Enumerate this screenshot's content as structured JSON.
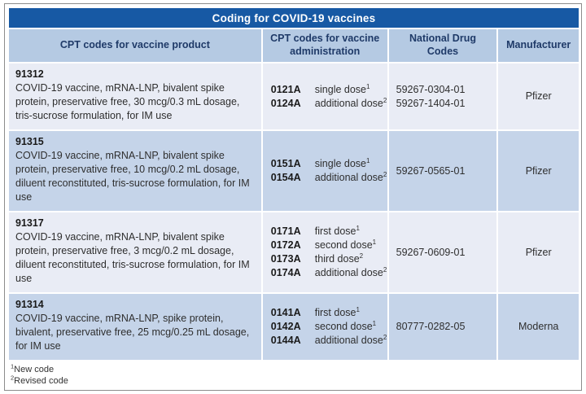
{
  "title": "Coding for COVID-19 vaccines",
  "columns": [
    "CPT codes for vaccine product",
    "CPT codes for vaccine administration",
    "National Drug Codes",
    "Manufacturer"
  ],
  "rows": [
    {
      "cpt_code": "91312",
      "description": "COVID-19 vaccine, mRNA-LNP, bivalent spike protein, preservative free, 30 mcg/0.3 mL dosage, tris-sucrose formulation, for IM use",
      "admin_codes": [
        {
          "code": "0121A",
          "label": "single dose",
          "sup": "1"
        },
        {
          "code": "0124A",
          "label": "additional dose",
          "sup": "2"
        }
      ],
      "ndc": [
        "59267-0304-01",
        "59267-1404-01"
      ],
      "manufacturer": "Pfizer"
    },
    {
      "cpt_code": "91315",
      "description": "COVID-19 vaccine, mRNA-LNP, bivalent spike protein, preservative free, 10 mcg/0.2 mL dosage, diluent reconstituted, tris-sucrose formulation, for IM use",
      "admin_codes": [
        {
          "code": "0151A",
          "label": "single dose",
          "sup": "1"
        },
        {
          "code": "0154A",
          "label": "additional dose",
          "sup": "2"
        }
      ],
      "ndc": [
        "59267-0565-01"
      ],
      "manufacturer": "Pfizer"
    },
    {
      "cpt_code": "91317",
      "description": "COVID-19 vaccine, mRNA-LNP, bivalent spike protein, preservative free, 3 mcg/0.2 mL dosage, diluent reconstituted, tris-sucrose formulation, for IM use",
      "admin_codes": [
        {
          "code": "0171A",
          "label": "first dose",
          "sup": "1"
        },
        {
          "code": "0172A",
          "label": "second dose",
          "sup": "1"
        },
        {
          "code": "0173A",
          "label": "third dose",
          "sup": "2"
        },
        {
          "code": "0174A",
          "label": "additional dose",
          "sup": "2"
        }
      ],
      "ndc": [
        "59267-0609-01"
      ],
      "manufacturer": "Pfizer"
    },
    {
      "cpt_code": "91314",
      "description": "COVID-19 vaccine, mRNA-LNP, spike protein, bivalent, preservative free, 25 mcg/0.25 mL dosage, for IM use",
      "admin_codes": [
        {
          "code": "0141A",
          "label": "first dose",
          "sup": "1"
        },
        {
          "code": "0142A",
          "label": "second dose",
          "sup": "1"
        },
        {
          "code": "0144A",
          "label": "additional dose",
          "sup": "2"
        }
      ],
      "ndc": [
        "80777-0282-05"
      ],
      "manufacturer": "Moderna"
    }
  ],
  "footnotes": [
    {
      "sup": "1",
      "text": "New code"
    },
    {
      "sup": "2",
      "text": "Revised code"
    }
  ],
  "colors": {
    "title_bar_bg": "#1759A4",
    "title_text": "#FFFFFF",
    "header_bg": "#B5CAE3",
    "header_text": "#1F3A68",
    "row_light_bg": "#E9ECF5",
    "row_dark_bg": "#C5D4E9",
    "body_text": "#2E2E2E",
    "border": "#8C8C8C"
  }
}
